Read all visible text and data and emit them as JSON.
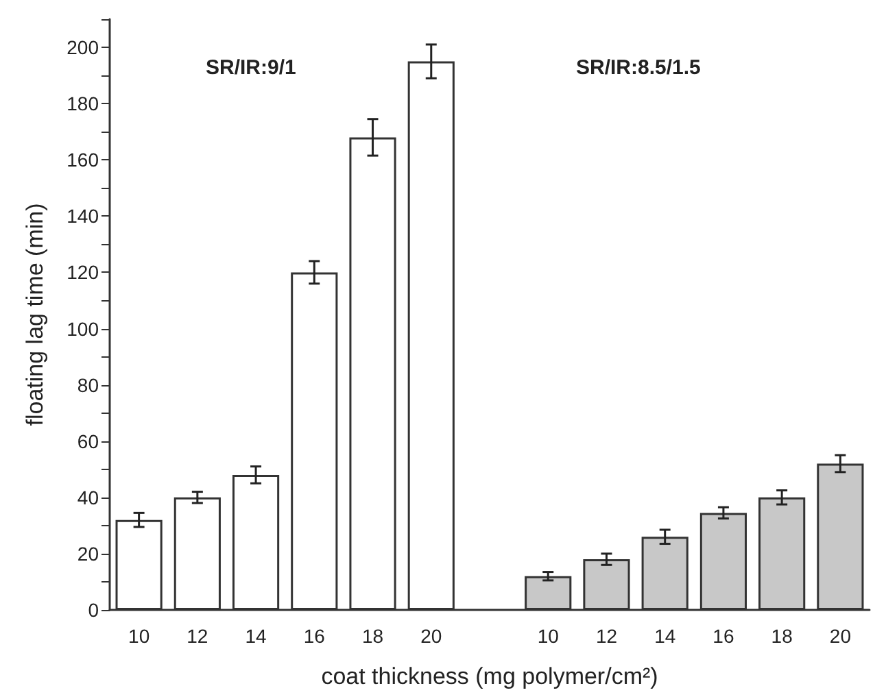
{
  "chart_data": {
    "type": "bar",
    "xlabel": "coat thickness (mg polymer/cm²)",
    "ylabel": "floating lag time (min)",
    "categories": [
      "10",
      "12",
      "14",
      "16",
      "18",
      "20",
      null,
      "10",
      "12",
      "14",
      "16",
      "18",
      "20"
    ],
    "series": [
      {
        "color": "#ffffff",
        "values": [
          32,
          40,
          48,
          120,
          168,
          195,
          null,
          null,
          null,
          null,
          null,
          null,
          null
        ],
        "errors": [
          2.5,
          2,
          3,
          4,
          6.5,
          6,
          null,
          null,
          null,
          null,
          null,
          null,
          null
        ]
      },
      {
        "color": "#c8c8c8",
        "values": [
          null,
          null,
          null,
          null,
          null,
          null,
          null,
          12,
          18,
          26,
          34.5,
          40,
          52
        ],
        "errors": [
          null,
          null,
          null,
          null,
          null,
          null,
          null,
          1.5,
          2,
          2.5,
          2,
          2.5,
          3
        ]
      }
    ],
    "annotations": [
      "SR/IR:9/1",
      "SR/IR:8.5/1.5"
    ],
    "ylim": [
      0,
      210
    ],
    "yticks": [
      0,
      20,
      40,
      60,
      80,
      100,
      120,
      140,
      160,
      180,
      200
    ],
    "grid": false
  }
}
